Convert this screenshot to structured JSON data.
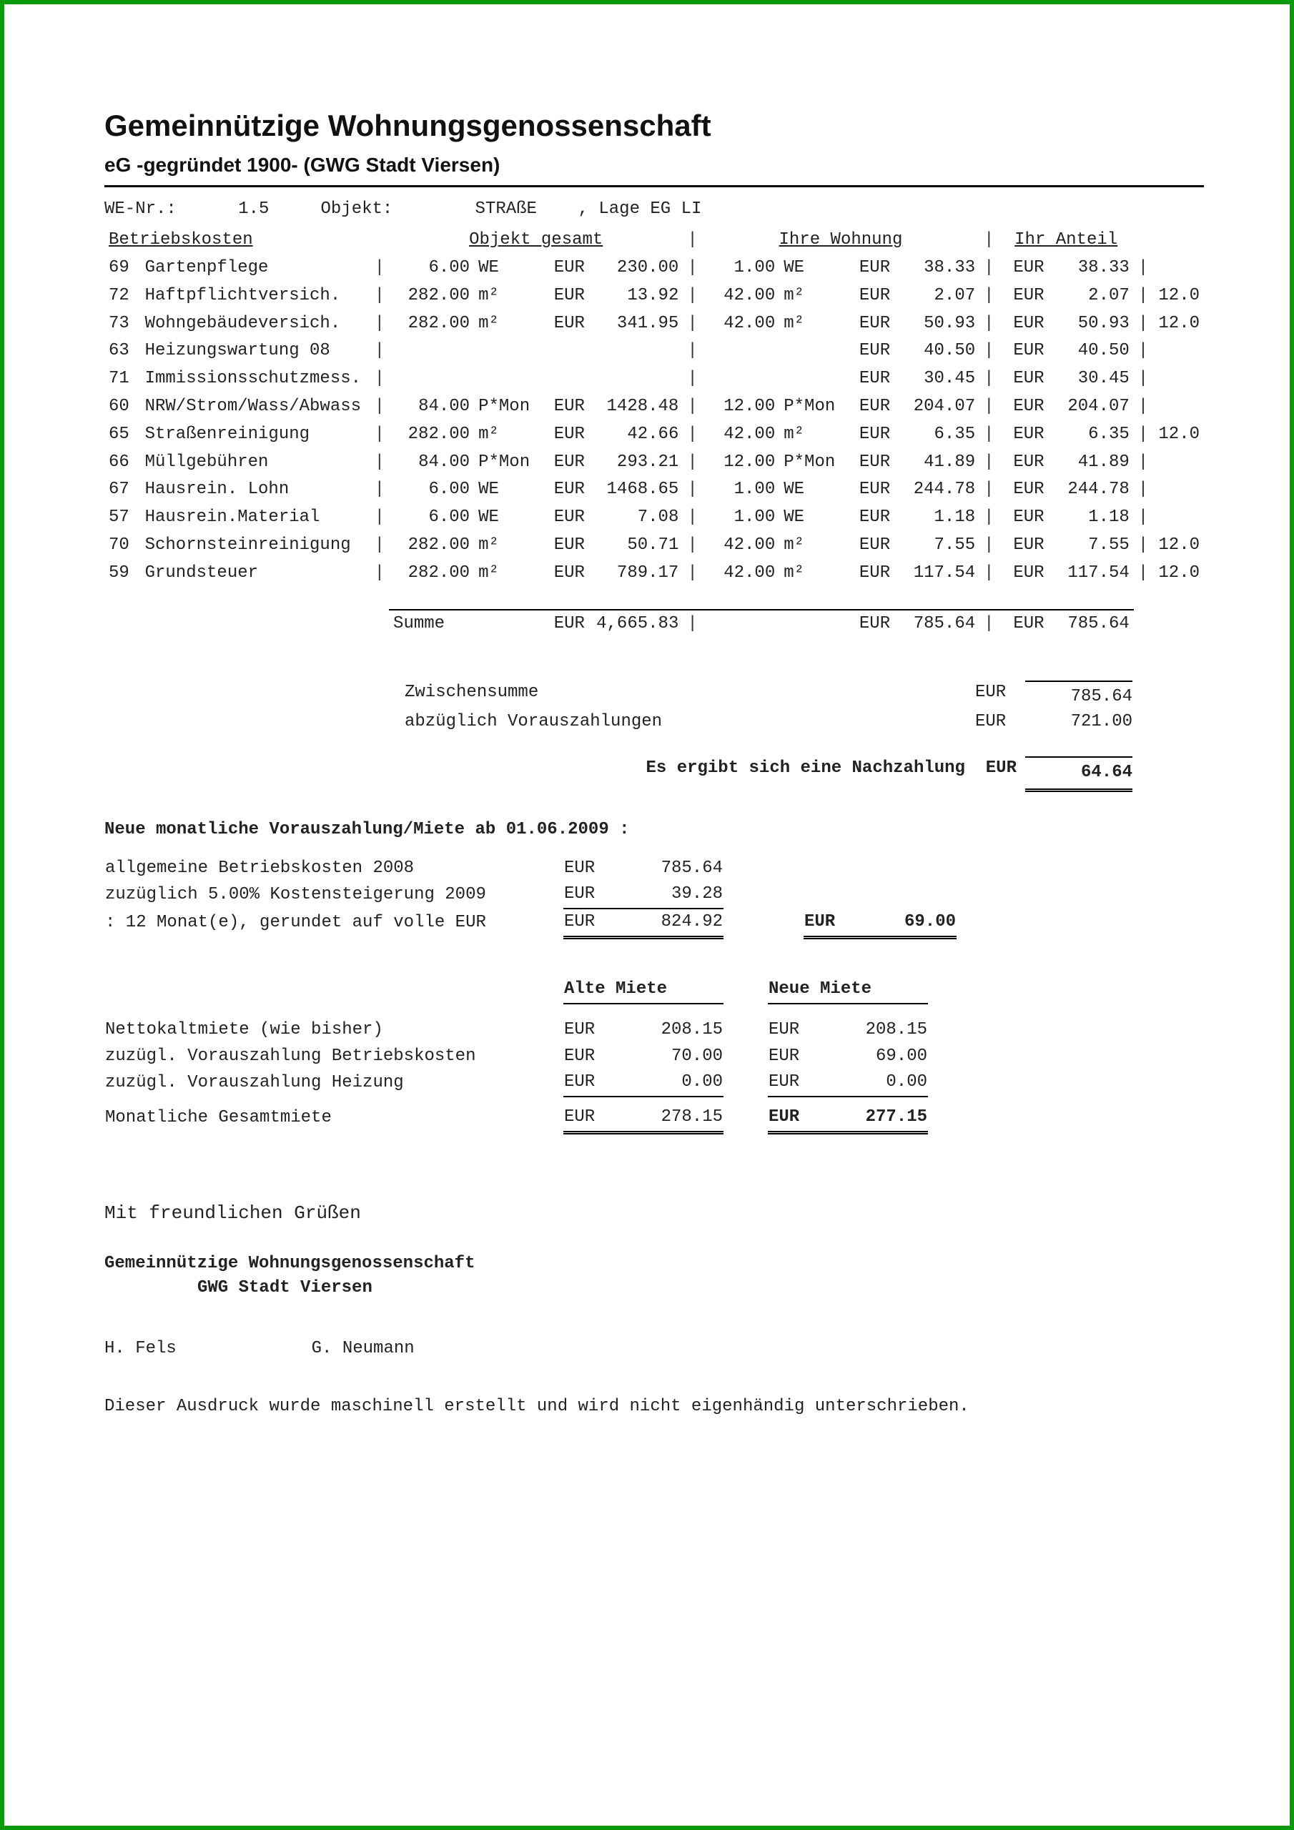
{
  "header": {
    "title": "Gemeinnützige Wohnungsgenossenschaft",
    "subtitle": "eG -gegründet 1900- (GWG Stadt Viersen)"
  },
  "meta": {
    "we_label": "WE-Nr.:",
    "we_value": "1.5",
    "obj_label": "Objekt:",
    "street": "STRAßE",
    "lage": ", Lage EG LI"
  },
  "cost": {
    "h1": "Betriebskosten",
    "h2": "Objekt gesamt",
    "h3": "Ihre Wohnung",
    "h4": "Ihr Anteil",
    "cur": "EUR",
    "rows": [
      {
        "no": "69",
        "name": "Gartenpflege",
        "oq": "6.00",
        "ou": "WE",
        "ov": "230.00",
        "wq": "1.00",
        "wu": "WE",
        "wv": "38.33",
        "av": "38.33",
        "ap": ""
      },
      {
        "no": "72",
        "name": "Haftpflichtversich.",
        "oq": "282.00",
        "ou": "m²",
        "ov": "13.92",
        "wq": "42.00",
        "wu": "m²",
        "wv": "2.07",
        "av": "2.07",
        "ap": "12.0"
      },
      {
        "no": "73",
        "name": "Wohngebäudeversich.",
        "oq": "282.00",
        "ou": "m²",
        "ov": "341.95",
        "wq": "42.00",
        "wu": "m²",
        "wv": "50.93",
        "av": "50.93",
        "ap": "12.0"
      },
      {
        "no": "63",
        "name": "Heizungswartung 08",
        "oq": "",
        "ou": "",
        "ov": "",
        "wq": "",
        "wu": "",
        "wv": "40.50",
        "av": "40.50",
        "ap": ""
      },
      {
        "no": "71",
        "name": "Immissionsschutzmess.",
        "oq": "",
        "ou": "",
        "ov": "",
        "wq": "",
        "wu": "",
        "wv": "30.45",
        "av": "30.45",
        "ap": ""
      },
      {
        "no": "60",
        "name": "NRW/Strom/Wass/Abwass",
        "oq": "84.00",
        "ou": "P*Mon",
        "ov": "1428.48",
        "wq": "12.00",
        "wu": "P*Mon",
        "wv": "204.07",
        "av": "204.07",
        "ap": ""
      },
      {
        "no": "65",
        "name": "Straßenreinigung",
        "oq": "282.00",
        "ou": "m²",
        "ov": "42.66",
        "wq": "42.00",
        "wu": "m²",
        "wv": "6.35",
        "av": "6.35",
        "ap": "12.0"
      },
      {
        "no": "66",
        "name": "Müllgebühren",
        "oq": "84.00",
        "ou": "P*Mon",
        "ov": "293.21",
        "wq": "12.00",
        "wu": "P*Mon",
        "wv": "41.89",
        "av": "41.89",
        "ap": ""
      },
      {
        "no": "67",
        "name": "Hausrein. Lohn",
        "oq": "6.00",
        "ou": "WE",
        "ov": "1468.65",
        "wq": "1.00",
        "wu": "WE",
        "wv": "244.78",
        "av": "244.78",
        "ap": ""
      },
      {
        "no": "57",
        "name": "Hausrein.Material",
        "oq": "6.00",
        "ou": "WE",
        "ov": "7.08",
        "wq": "1.00",
        "wu": "WE",
        "wv": "1.18",
        "av": "1.18",
        "ap": ""
      },
      {
        "no": "70",
        "name": "Schornsteinreinigung",
        "oq": "282.00",
        "ou": "m²",
        "ov": "50.71",
        "wq": "42.00",
        "wu": "m²",
        "wv": "7.55",
        "av": "7.55",
        "ap": "12.0"
      },
      {
        "no": "59",
        "name": "Grundsteuer",
        "oq": "282.00",
        "ou": "m²",
        "ov": "789.17",
        "wq": "42.00",
        "wu": "m²",
        "wv": "117.54",
        "av": "117.54",
        "ap": "12.0"
      }
    ],
    "sum_label": "Summe",
    "sum_obj": "4,665.83",
    "sum_whg": "785.64",
    "sum_ant": "785.64"
  },
  "balance": {
    "zws_label": "Zwischensumme",
    "zws_val": "785.64",
    "abz_label": "abzüglich Vorauszahlungen",
    "abz_val": "721.00",
    "result_label": "Es ergibt sich eine Nachzahlung",
    "result_cur": "EUR",
    "result_val": "64.64"
  },
  "newpay": {
    "title": "Neue monatliche Vorauszahlung/Miete ab 01.06.2009 :",
    "l1": "allgemeine Betriebskosten 2008",
    "v1": "785.64",
    "l2": "zuzüglich   5.00% Kostensteigerung 2009",
    "v2": "39.28",
    "l3": ": 12 Monat(e), gerundet auf volle EUR",
    "v3": "824.92",
    "final": "69.00"
  },
  "rent": {
    "col_old": "Alte Miete",
    "col_new": "Neue Miete",
    "r1": "Nettokaltmiete (wie bisher)",
    "o1": "208.15",
    "n1": "208.15",
    "r2": "zuzügl. Vorauszahlung Betriebskosten",
    "o2": "70.00",
    "n2": "69.00",
    "r3": "zuzügl. Vorauszahlung Heizung",
    "o3": "0.00",
    "n3": "0.00",
    "r4": "Monatliche Gesamtmiete",
    "o4": "278.15",
    "n4": "277.15"
  },
  "closing": {
    "greeting": "Mit freundlichen Grüßen",
    "org1": "Gemeinnützige Wohnungsgenossenschaft",
    "org2": "GWG Stadt Viersen",
    "sig1": "H. Fels",
    "sig2": "G. Neumann",
    "note": "Dieser Ausdruck wurde maschinell erstellt und wird nicht eigenhändig unterschrieben."
  },
  "cur": "EUR"
}
